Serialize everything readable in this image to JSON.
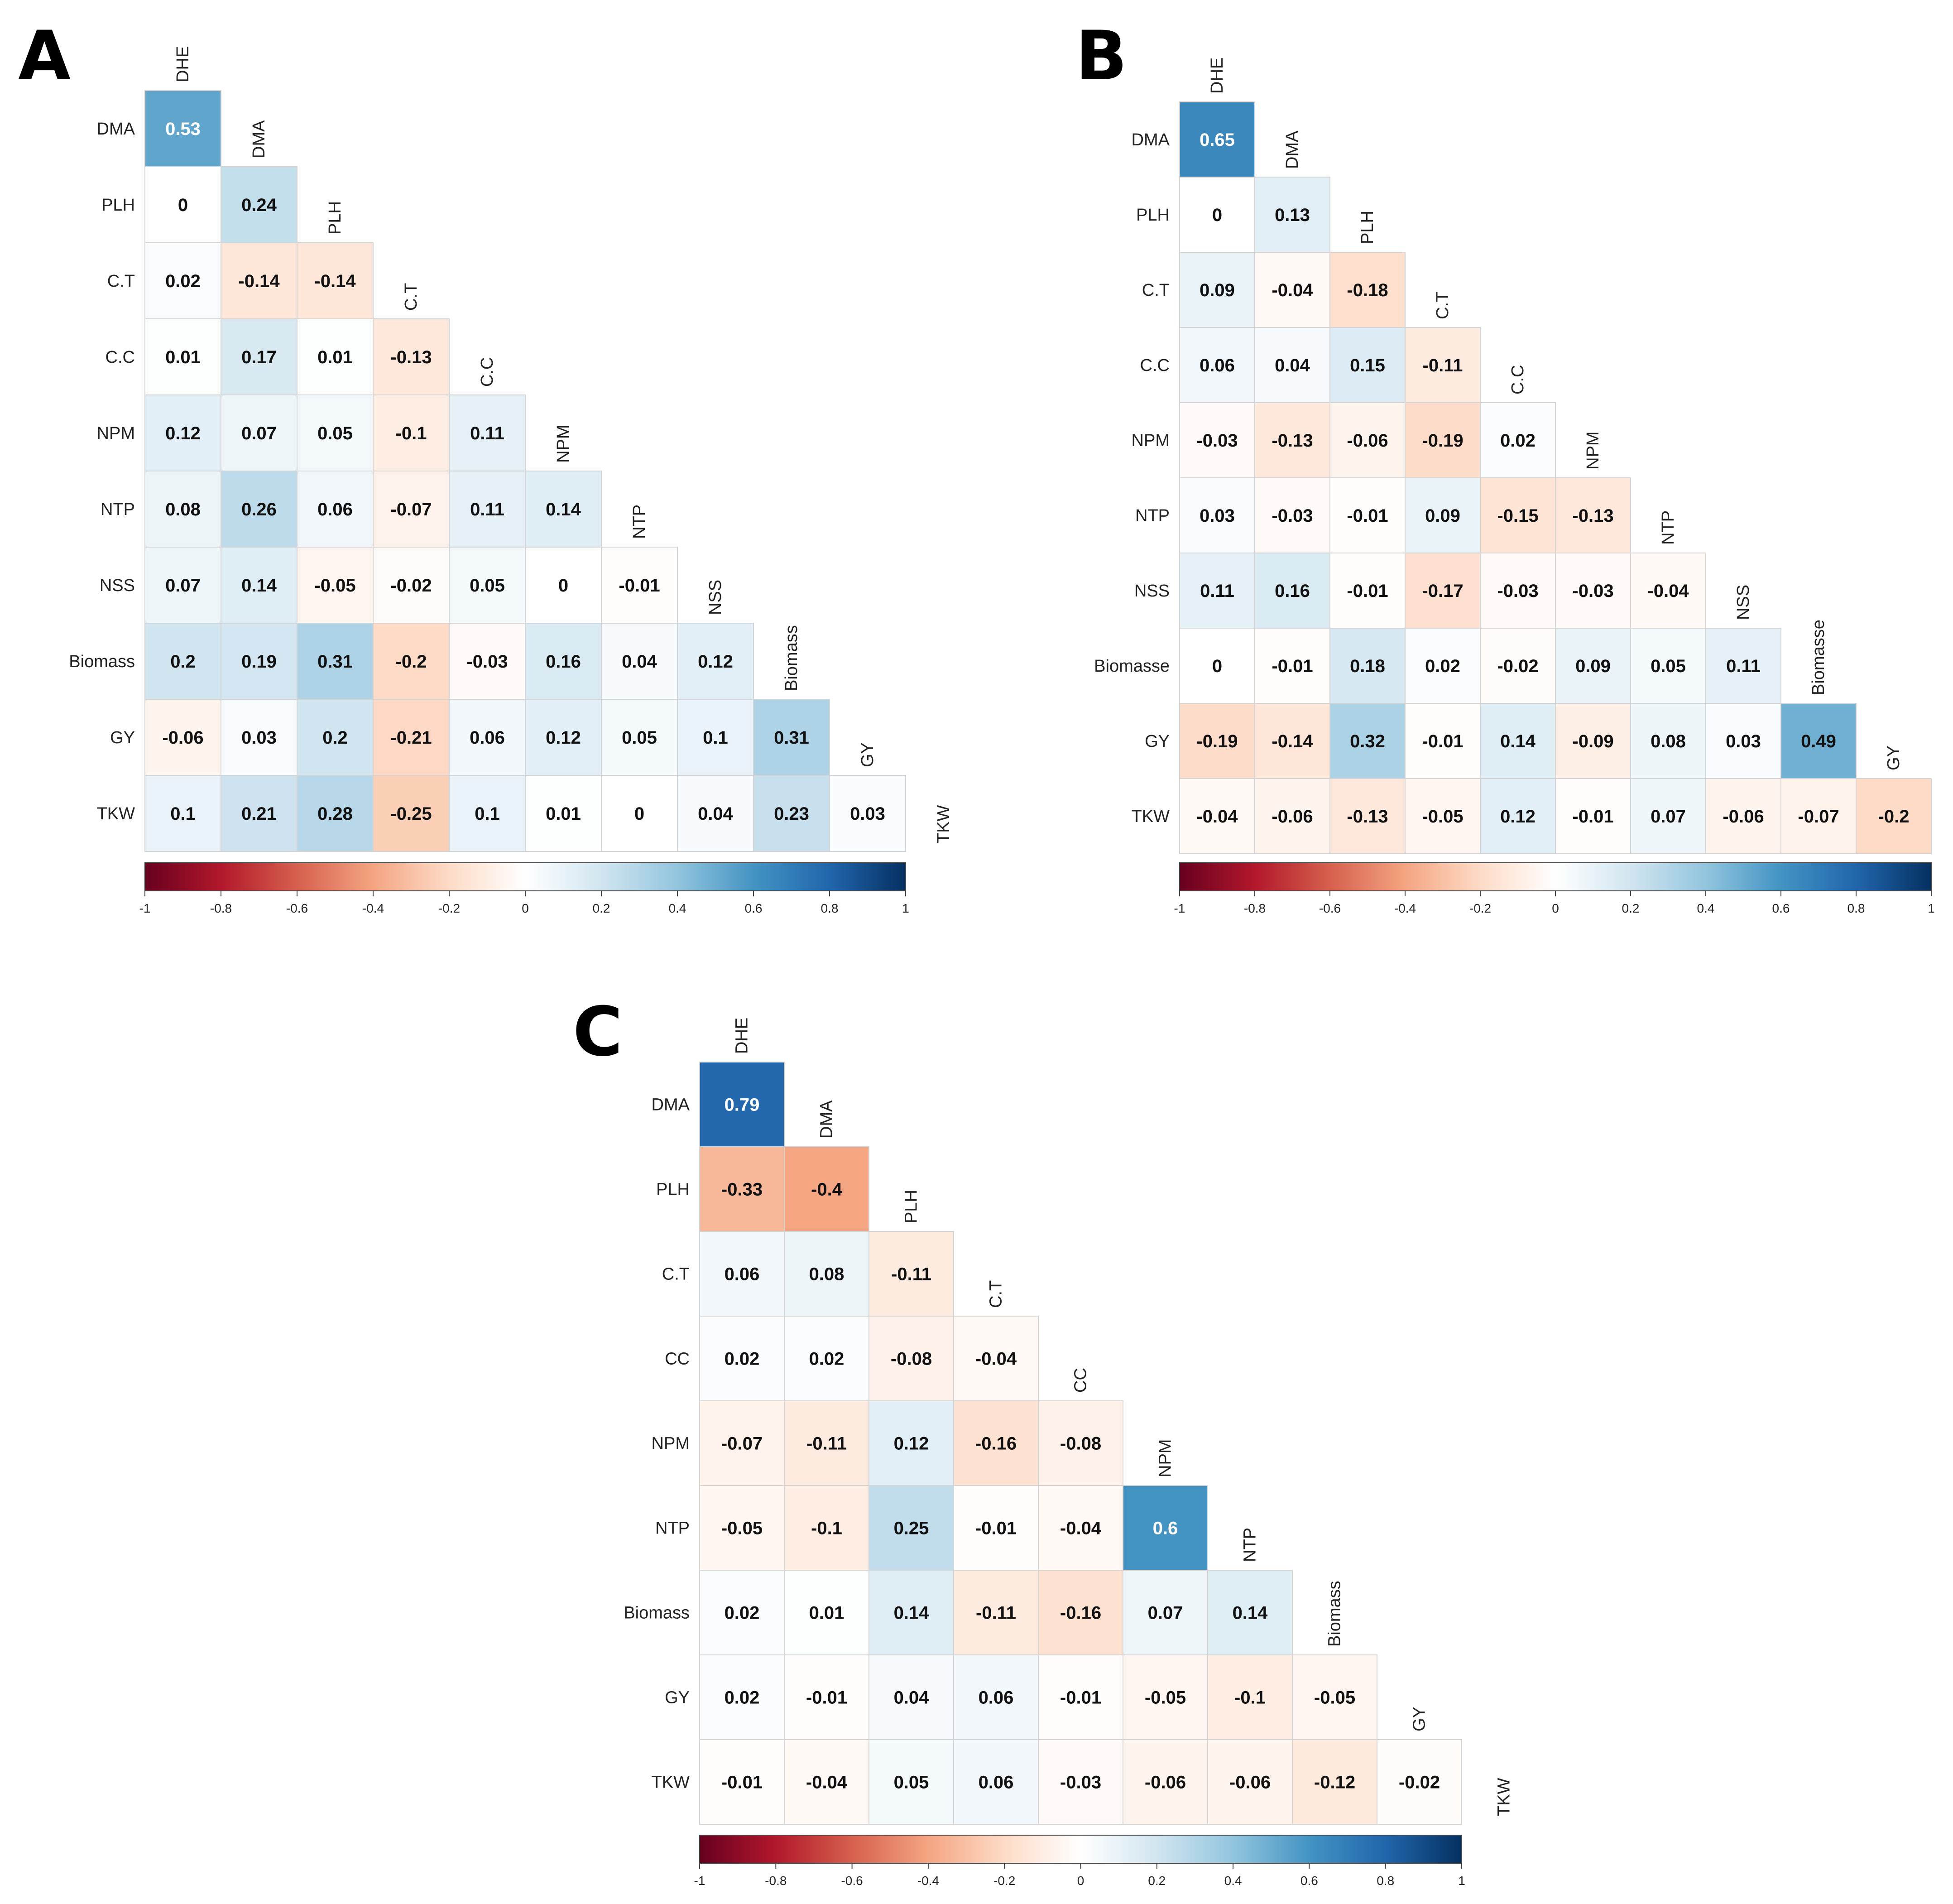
{
  "chart_data": [
    {
      "type": "heatmap",
      "panel": "A",
      "title": "A",
      "variables": [
        "DHE",
        "DMA",
        "PLH",
        "C.T",
        "C.C",
        "NPM",
        "NTP",
        "NSS",
        "Biomass",
        "GY",
        "TKW"
      ],
      "rows": [
        {
          "name": "DMA",
          "values": [
            0.53
          ]
        },
        {
          "name": "PLH",
          "values": [
            0,
            0.24
          ]
        },
        {
          "name": "C.T",
          "values": [
            0.02,
            -0.14,
            -0.14
          ]
        },
        {
          "name": "C.C",
          "values": [
            0.01,
            0.17,
            0.01,
            -0.13
          ]
        },
        {
          "name": "NPM",
          "values": [
            0.12,
            0.07,
            0.05,
            -0.1,
            0.11
          ]
        },
        {
          "name": "NTP",
          "values": [
            0.08,
            0.26,
            0.06,
            -0.07,
            0.11,
            0.14
          ]
        },
        {
          "name": "NSS",
          "values": [
            0.07,
            0.14,
            -0.05,
            -0.02,
            0.05,
            0,
            -0.01
          ]
        },
        {
          "name": "Biomass",
          "values": [
            0.2,
            0.19,
            0.31,
            -0.2,
            -0.03,
            0.16,
            0.04,
            0.12
          ]
        },
        {
          "name": "GY",
          "values": [
            -0.06,
            0.03,
            0.2,
            -0.21,
            0.06,
            0.12,
            0.05,
            0.1,
            0.31
          ]
        },
        {
          "name": "TKW",
          "values": [
            0.1,
            0.21,
            0.28,
            -0.25,
            0.1,
            0.01,
            0,
            0.04,
            0.23,
            0.03
          ]
        }
      ],
      "scale": {
        "min": -1,
        "max": 1,
        "ticks": [
          "-1",
          "-0.8",
          "-0.6",
          "-0.4",
          "-0.2",
          "0",
          "0.2",
          "0.4",
          "0.6",
          "0.8",
          "1"
        ]
      }
    },
    {
      "type": "heatmap",
      "panel": "B",
      "title": "B",
      "variables": [
        "DHE",
        "DMA",
        "PLH",
        "C.T",
        "C.C",
        "NPM",
        "NTP",
        "NSS",
        "Biomasse",
        "GY",
        "TKW"
      ],
      "rows": [
        {
          "name": "DMA",
          "values": [
            0.65
          ]
        },
        {
          "name": "PLH",
          "values": [
            0,
            0.13
          ]
        },
        {
          "name": "C.T",
          "values": [
            0.09,
            -0.04,
            -0.18
          ]
        },
        {
          "name": "C.C",
          "values": [
            0.06,
            0.04,
            0.15,
            -0.11
          ]
        },
        {
          "name": "NPM",
          "values": [
            -0.03,
            -0.13,
            -0.06,
            -0.19,
            0.02
          ]
        },
        {
          "name": "NTP",
          "values": [
            0.03,
            -0.03,
            -0.01,
            0.09,
            -0.15,
            -0.13
          ]
        },
        {
          "name": "NSS",
          "values": [
            0.11,
            0.16,
            -0.01,
            -0.17,
            -0.03,
            -0.03,
            -0.04
          ]
        },
        {
          "name": "Biomasse",
          "values": [
            0,
            -0.01,
            0.18,
            0.02,
            -0.02,
            0.09,
            0.05,
            0.11
          ]
        },
        {
          "name": "GY",
          "values": [
            -0.19,
            -0.14,
            0.32,
            -0.01,
            0.14,
            -0.09,
            0.08,
            0.03,
            0.49
          ]
        },
        {
          "name": "TKW",
          "values": [
            -0.04,
            -0.06,
            -0.13,
            -0.05,
            0.12,
            -0.01,
            0.07,
            -0.06,
            -0.07,
            -0.2
          ]
        }
      ],
      "scale": {
        "min": -1,
        "max": 1,
        "ticks": [
          "-1",
          "-0.8",
          "-0.6",
          "-0.4",
          "-0.2",
          "0",
          "0.2",
          "0.4",
          "0.6",
          "0.8",
          "1"
        ]
      }
    },
    {
      "type": "heatmap",
      "panel": "C",
      "title": "C",
      "variables": [
        "DHE",
        "DMA",
        "PLH",
        "C.T",
        "CC",
        "NPM",
        "NTP",
        "Biomass",
        "GY",
        "TKW"
      ],
      "rows": [
        {
          "name": "DMA",
          "values": [
            0.79
          ]
        },
        {
          "name": "PLH",
          "values": [
            -0.33,
            -0.4
          ]
        },
        {
          "name": "C.T",
          "values": [
            0.06,
            0.08,
            -0.11
          ]
        },
        {
          "name": "CC",
          "values": [
            0.02,
            0.02,
            -0.08,
            -0.04
          ]
        },
        {
          "name": "NPM",
          "values": [
            -0.07,
            -0.11,
            0.12,
            -0.16,
            -0.08
          ]
        },
        {
          "name": "NTP",
          "values": [
            -0.05,
            -0.1,
            0.25,
            -0.01,
            -0.04,
            0.6
          ]
        },
        {
          "name": "Biomass",
          "values": [
            0.02,
            0.01,
            0.14,
            -0.11,
            -0.16,
            0.07,
            0.14
          ]
        },
        {
          "name": "GY",
          "values": [
            0.02,
            -0.01,
            0.04,
            0.06,
            -0.01,
            -0.05,
            -0.1,
            -0.05
          ]
        },
        {
          "name": "TKW",
          "values": [
            -0.01,
            -0.04,
            0.05,
            0.06,
            -0.03,
            -0.06,
            -0.06,
            -0.12,
            -0.02
          ]
        }
      ],
      "scale": {
        "min": -1,
        "max": 1,
        "ticks": [
          "-1",
          "-0.8",
          "-0.6",
          "-0.4",
          "-0.2",
          "0",
          "0.2",
          "0.4",
          "0.6",
          "0.8",
          "1"
        ]
      }
    }
  ]
}
